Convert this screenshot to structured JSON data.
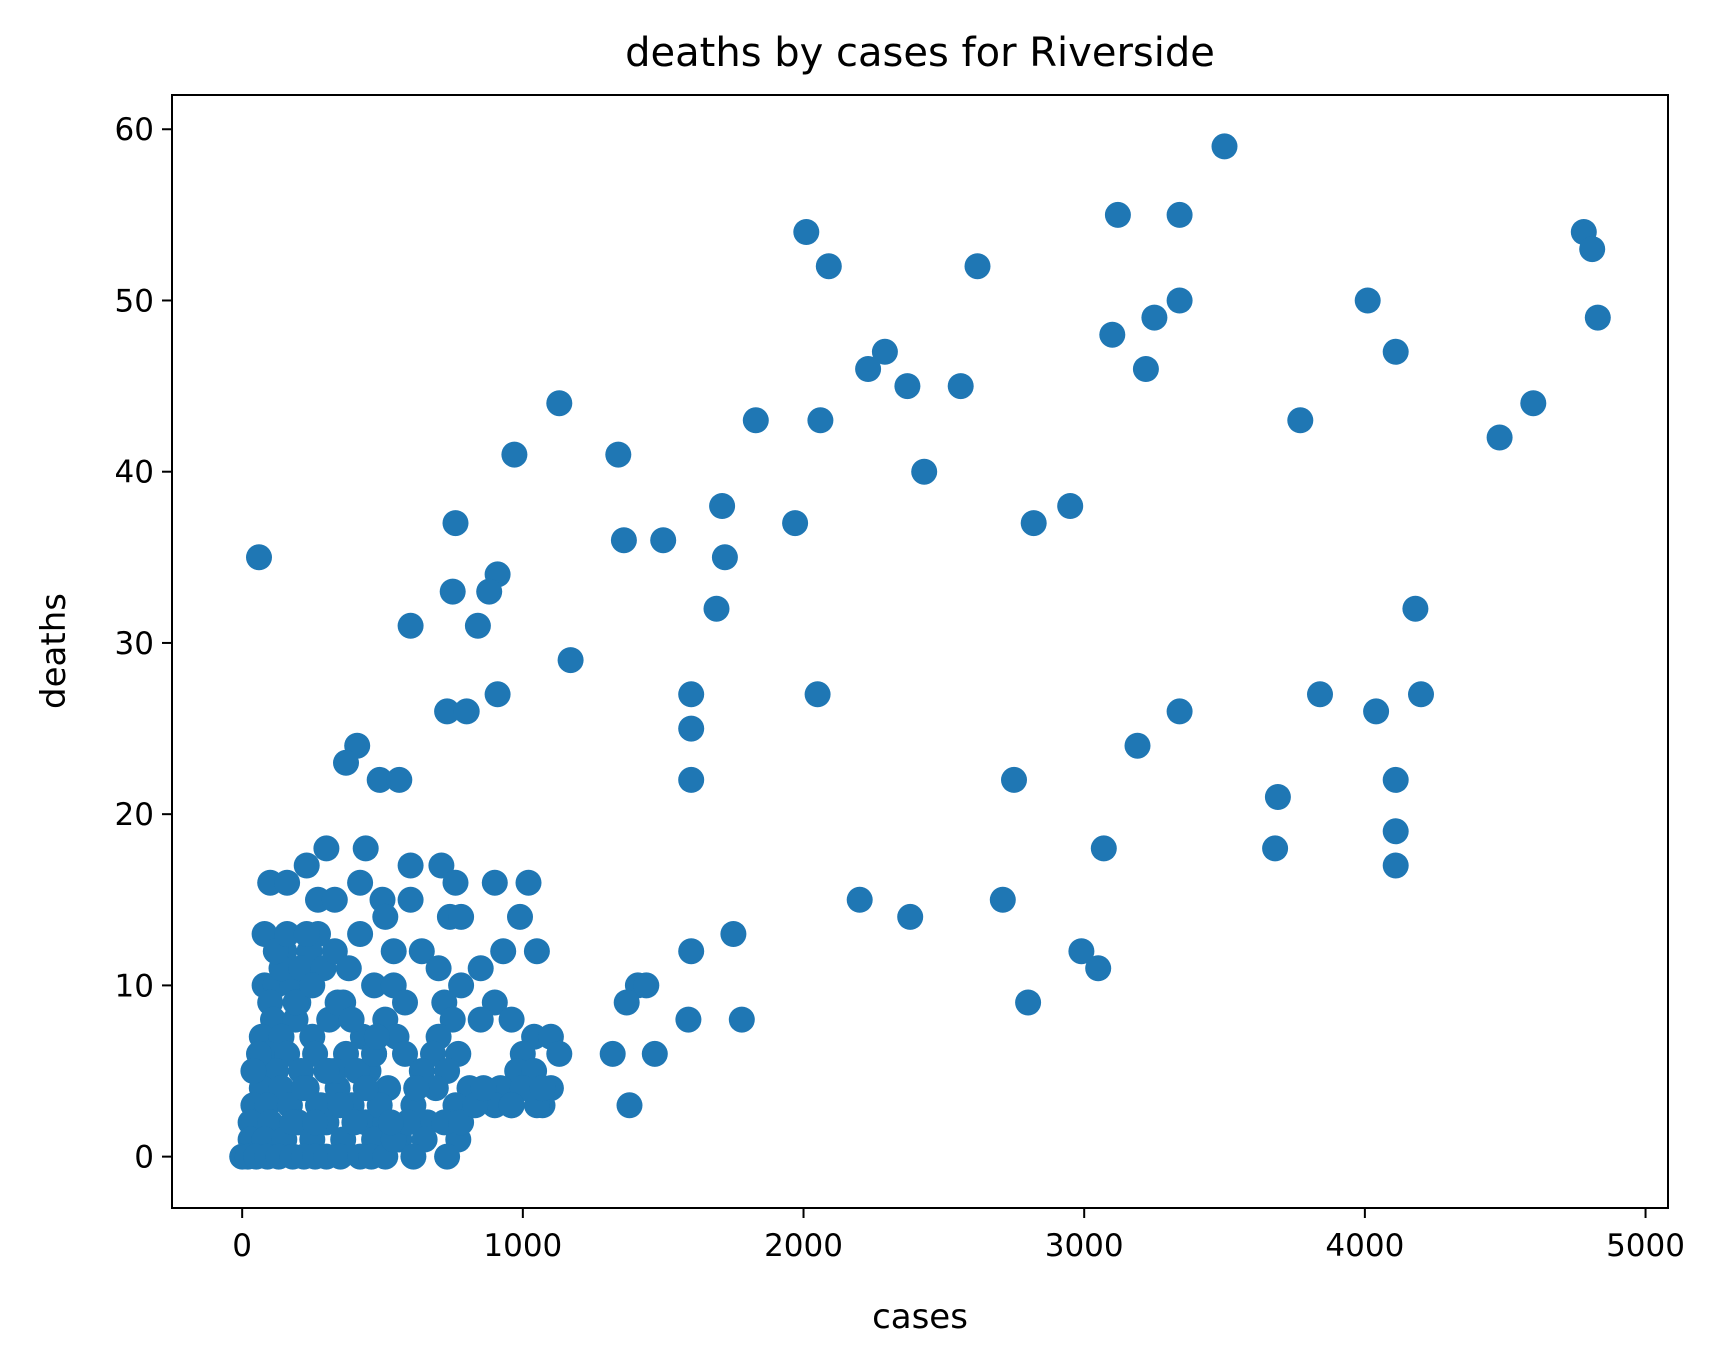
{
  "chart_data": {
    "type": "scatter",
    "title": "deaths by cases for Riverside",
    "xlabel": "cases",
    "ylabel": "deaths",
    "xlim": [
      -250,
      5080
    ],
    "ylim": [
      -3,
      62
    ],
    "xticks": [
      0,
      1000,
      2000,
      3000,
      4000,
      5000
    ],
    "yticks": [
      0,
      10,
      20,
      30,
      40,
      50,
      60
    ],
    "grid": false,
    "marker_color": "#1f77b4",
    "points": [
      [
        3500,
        59
      ],
      [
        2010,
        54
      ],
      [
        4780,
        54
      ],
      [
        3120,
        55
      ],
      [
        3340,
        55
      ],
      [
        4810,
        53
      ],
      [
        2090,
        52
      ],
      [
        2620,
        52
      ],
      [
        4830,
        49
      ],
      [
        4010,
        50
      ],
      [
        3340,
        50
      ],
      [
        3250,
        49
      ],
      [
        3100,
        48
      ],
      [
        2290,
        47
      ],
      [
        4110,
        47
      ],
      [
        2230,
        46
      ],
      [
        3220,
        46
      ],
      [
        2370,
        45
      ],
      [
        2560,
        45
      ],
      [
        1130,
        44
      ],
      [
        4600,
        44
      ],
      [
        1830,
        43
      ],
      [
        2060,
        43
      ],
      [
        3770,
        43
      ],
      [
        4480,
        42
      ],
      [
        970,
        41
      ],
      [
        1340,
        41
      ],
      [
        2430,
        40
      ],
      [
        1710,
        38
      ],
      [
        2950,
        38
      ],
      [
        760,
        37
      ],
      [
        1970,
        37
      ],
      [
        2820,
        37
      ],
      [
        60,
        35
      ],
      [
        1720,
        35
      ],
      [
        1360,
        36
      ],
      [
        1500,
        36
      ],
      [
        910,
        34
      ],
      [
        750,
        33
      ],
      [
        880,
        33
      ],
      [
        1690,
        32
      ],
      [
        4180,
        32
      ],
      [
        600,
        31
      ],
      [
        840,
        31
      ],
      [
        1170,
        29
      ],
      [
        730,
        26
      ],
      [
        800,
        26
      ],
      [
        910,
        27
      ],
      [
        1600,
        27
      ],
      [
        2050,
        27
      ],
      [
        3840,
        27
      ],
      [
        4200,
        27
      ],
      [
        3340,
        26
      ],
      [
        4040,
        26
      ],
      [
        1600,
        25
      ],
      [
        410,
        24
      ],
      [
        3190,
        24
      ],
      [
        370,
        23
      ],
      [
        490,
        22
      ],
      [
        560,
        22
      ],
      [
        1600,
        22
      ],
      [
        2750,
        22
      ],
      [
        4110,
        22
      ],
      [
        3690,
        21
      ],
      [
        4110,
        19
      ],
      [
        3070,
        18
      ],
      [
        3680,
        18
      ],
      [
        4110,
        17
      ],
      [
        300,
        18
      ],
      [
        440,
        18
      ],
      [
        230,
        17
      ],
      [
        600,
        17
      ],
      [
        710,
        17
      ],
      [
        100,
        16
      ],
      [
        160,
        16
      ],
      [
        420,
        16
      ],
      [
        760,
        16
      ],
      [
        900,
        16
      ],
      [
        1020,
        16
      ],
      [
        270,
        15
      ],
      [
        330,
        15
      ],
      [
        500,
        15
      ],
      [
        600,
        15
      ],
      [
        2200,
        15
      ],
      [
        2710,
        15
      ],
      [
        740,
        14
      ],
      [
        780,
        14
      ],
      [
        990,
        14
      ],
      [
        510,
        14
      ],
      [
        2380,
        14
      ],
      [
        80,
        13
      ],
      [
        270,
        13
      ],
      [
        420,
        13
      ],
      [
        1750,
        13
      ],
      [
        150,
        12
      ],
      [
        240,
        12
      ],
      [
        540,
        12
      ],
      [
        640,
        12
      ],
      [
        930,
        12
      ],
      [
        1050,
        12
      ],
      [
        1600,
        12
      ],
      [
        2990,
        12
      ],
      [
        3050,
        11
      ],
      [
        700,
        11
      ],
      [
        850,
        11
      ],
      [
        80,
        10
      ],
      [
        120,
        10
      ],
      [
        180,
        10
      ],
      [
        470,
        10
      ],
      [
        540,
        10
      ],
      [
        780,
        10
      ],
      [
        1410,
        10
      ],
      [
        1440,
        10
      ],
      [
        100,
        9
      ],
      [
        200,
        9
      ],
      [
        360,
        9
      ],
      [
        580,
        9
      ],
      [
        720,
        9
      ],
      [
        900,
        9
      ],
      [
        1370,
        9
      ],
      [
        2800,
        9
      ],
      [
        110,
        8
      ],
      [
        190,
        8
      ],
      [
        310,
        8
      ],
      [
        510,
        8
      ],
      [
        750,
        8
      ],
      [
        850,
        8
      ],
      [
        960,
        8
      ],
      [
        1590,
        8
      ],
      [
        1780,
        8
      ],
      [
        70,
        7
      ],
      [
        140,
        7
      ],
      [
        250,
        7
      ],
      [
        430,
        7
      ],
      [
        550,
        7
      ],
      [
        700,
        7
      ],
      [
        1040,
        7
      ],
      [
        1100,
        7
      ],
      [
        90,
        6
      ],
      [
        160,
        6
      ],
      [
        260,
        6
      ],
      [
        370,
        6
      ],
      [
        470,
        6
      ],
      [
        580,
        6
      ],
      [
        680,
        6
      ],
      [
        770,
        6
      ],
      [
        1000,
        6
      ],
      [
        1130,
        6
      ],
      [
        1320,
        6
      ],
      [
        1470,
        6
      ],
      [
        60,
        5
      ],
      [
        120,
        5
      ],
      [
        210,
        5
      ],
      [
        310,
        5
      ],
      [
        450,
        5
      ],
      [
        640,
        5
      ],
      [
        730,
        5
      ],
      [
        980,
        5
      ],
      [
        1040,
        5
      ],
      [
        70,
        4
      ],
      [
        140,
        4
      ],
      [
        230,
        4
      ],
      [
        340,
        4
      ],
      [
        520,
        4
      ],
      [
        690,
        4
      ],
      [
        810,
        4
      ],
      [
        920,
        4
      ],
      [
        1000,
        4
      ],
      [
        1100,
        4
      ],
      [
        40,
        3
      ],
      [
        90,
        3
      ],
      [
        170,
        3
      ],
      [
        270,
        3
      ],
      [
        390,
        3
      ],
      [
        610,
        3
      ],
      [
        760,
        3
      ],
      [
        900,
        3
      ],
      [
        960,
        3
      ],
      [
        1070,
        3
      ],
      [
        1380,
        3
      ],
      [
        30,
        2
      ],
      [
        100,
        2
      ],
      [
        200,
        2
      ],
      [
        300,
        2
      ],
      [
        440,
        2
      ],
      [
        510,
        2
      ],
      [
        660,
        2
      ],
      [
        740,
        2
      ],
      [
        30,
        1
      ],
      [
        80,
        1
      ],
      [
        150,
        1
      ],
      [
        250,
        1
      ],
      [
        360,
        1
      ],
      [
        470,
        1
      ],
      [
        560,
        1
      ],
      [
        650,
        1
      ],
      [
        770,
        1
      ],
      [
        0,
        0
      ],
      [
        20,
        0
      ],
      [
        50,
        0
      ],
      [
        90,
        0
      ],
      [
        130,
        0
      ],
      [
        180,
        0
      ],
      [
        220,
        0
      ],
      [
        260,
        0
      ],
      [
        300,
        0
      ],
      [
        350,
        0
      ],
      [
        420,
        0
      ],
      [
        460,
        0
      ],
      [
        510,
        0
      ],
      [
        610,
        0
      ],
      [
        730,
        0
      ],
      [
        140,
        11
      ],
      [
        210,
        11
      ],
      [
        290,
        11
      ],
      [
        120,
        12
      ],
      [
        190,
        9
      ],
      [
        250,
        10
      ],
      [
        330,
        12
      ],
      [
        380,
        11
      ],
      [
        160,
        13
      ],
      [
        230,
        13
      ],
      [
        340,
        9
      ],
      [
        390,
        8
      ],
      [
        60,
        6
      ],
      [
        40,
        5
      ],
      [
        280,
        3
      ],
      [
        330,
        5
      ],
      [
        410,
        5
      ],
      [
        490,
        3
      ],
      [
        540,
        1
      ],
      [
        590,
        2
      ],
      [
        620,
        4
      ],
      [
        720,
        2
      ],
      [
        780,
        2
      ],
      [
        830,
        3
      ],
      [
        860,
        4
      ],
      [
        1050,
        3
      ],
      [
        1070,
        4
      ],
      [
        960,
        3
      ],
      [
        180,
        2
      ],
      [
        220,
        4
      ],
      [
        260,
        2
      ],
      [
        300,
        5
      ],
      [
        350,
        3
      ],
      [
        400,
        2
      ],
      [
        440,
        4
      ],
      [
        470,
        6
      ],
      [
        480,
        7
      ],
      [
        530,
        2
      ]
    ]
  }
}
